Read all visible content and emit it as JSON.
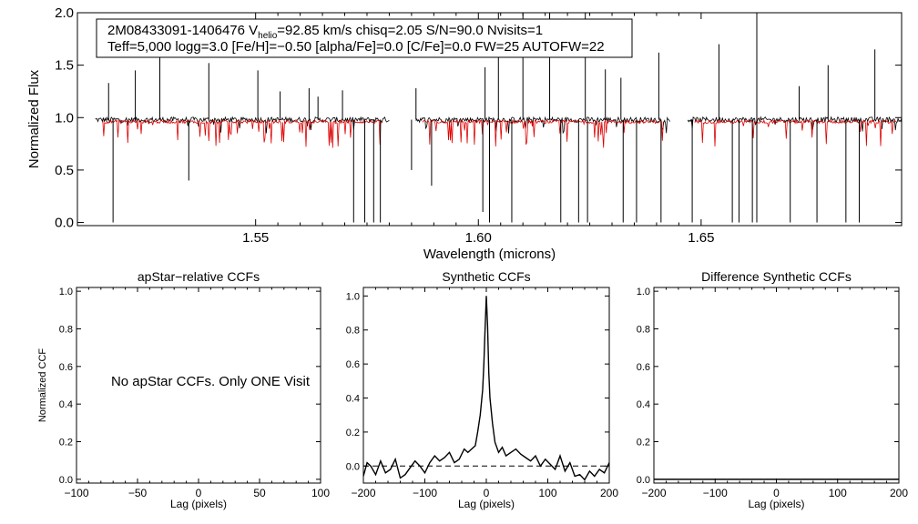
{
  "info_box": {
    "line1": {
      "star_id": "2M08433091-1406476",
      "v_label": "V",
      "v_sub": "helio",
      "v_value": "=92.85 km/s",
      "chisq": "chisq=2.05",
      "snr": "S/N=90.0",
      "nvisits": "Nvisits=1"
    },
    "line2": "Teff=5,000 logg=3.0 [Fe/H]=−0.50 [alpha/Fe]=0.0 [C/Fe]=0.0 FW=25 AUTOFW=22"
  },
  "chart_data": [
    {
      "name": "spectrum",
      "type": "line",
      "title": "",
      "xlabel": "Wavelength (microns)",
      "ylabel": "Normalized Flux",
      "xlim": [
        1.51,
        1.695
      ],
      "ylim": [
        -0.03,
        2.0
      ],
      "xticks": [
        1.55,
        1.6,
        1.65
      ],
      "xtick_labels": [
        "1.55",
        "1.60",
        "1.65"
      ],
      "yticks": [
        0.0,
        0.5,
        1.0,
        1.5,
        2.0
      ],
      "ytick_labels": [
        "0.0",
        "0.5",
        "1.0",
        "1.5",
        "2.0"
      ],
      "chip_ranges": [
        [
          1.514,
          1.58
        ],
        [
          1.586,
          1.643
        ],
        [
          1.647,
          1.6955
        ]
      ],
      "series": [
        {
          "name": "observed",
          "color": "#000000",
          "level": 0.98
        },
        {
          "name": "synthetic",
          "color": "#dd0000",
          "level": 0.96
        }
      ],
      "spikes_up": [
        [
          1.517,
          1.33
        ],
        [
          1.523,
          1.45
        ],
        [
          1.5285,
          1.62
        ],
        [
          1.5395,
          1.52
        ],
        [
          1.5505,
          1.45
        ],
        [
          1.5555,
          1.25
        ],
        [
          1.562,
          1.28
        ],
        [
          1.564,
          1.2
        ],
        [
          1.5695,
          1.26
        ],
        [
          1.586,
          1.28
        ],
        [
          1.6015,
          1.48
        ],
        [
          1.6045,
          2.0
        ],
        [
          1.61,
          2.0
        ],
        [
          1.616,
          2.0
        ],
        [
          1.624,
          2.0
        ],
        [
          1.6285,
          1.46
        ],
        [
          1.632,
          1.38
        ],
        [
          1.6405,
          1.62
        ],
        [
          1.654,
          1.7
        ],
        [
          1.6625,
          2.0
        ],
        [
          1.672,
          1.3
        ],
        [
          1.6785,
          1.5
        ],
        [
          1.689,
          1.65
        ]
      ],
      "spikes_down": [
        [
          1.518,
          0.0
        ],
        [
          1.535,
          0.4
        ],
        [
          1.572,
          0.0
        ],
        [
          1.5745,
          0.0
        ],
        [
          1.5765,
          0.0
        ],
        [
          1.578,
          0.0
        ],
        [
          1.585,
          0.5
        ],
        [
          1.5895,
          0.35
        ],
        [
          1.601,
          0.1
        ],
        [
          1.6025,
          0.0
        ],
        [
          1.6075,
          0.0
        ],
        [
          1.6185,
          0.0
        ],
        [
          1.6225,
          0.0
        ],
        [
          1.6245,
          0.0
        ],
        [
          1.6325,
          0.0
        ],
        [
          1.6355,
          0.0
        ],
        [
          1.641,
          0.0
        ],
        [
          1.648,
          0.0
        ],
        [
          1.657,
          0.0
        ],
        [
          1.6585,
          0.0
        ],
        [
          1.6615,
          0.0
        ],
        [
          1.6625,
          0.0
        ],
        [
          1.67,
          0.0
        ],
        [
          1.676,
          0.0
        ],
        [
          1.6825,
          0.0
        ],
        [
          1.6855,
          0.0
        ]
      ]
    },
    {
      "name": "apstar-ccf",
      "type": "line",
      "title": "apStar−relative CCFs",
      "xlabel": "Lag (pixels)",
      "ylabel": "Normalized CCF",
      "xlim": [
        -100,
        100
      ],
      "ylim": [
        -0.02,
        1.02
      ],
      "xticks": [
        -100,
        -50,
        0,
        50,
        100
      ],
      "xtick_labels": [
        "−100",
        "−50",
        "0",
        "50",
        "100"
      ],
      "yticks": [
        0.0,
        0.2,
        0.4,
        0.6,
        0.8,
        1.0
      ],
      "ytick_labels": [
        "0.0",
        "0.2",
        "0.4",
        "0.6",
        "0.8",
        "1.0"
      ],
      "message": "No apStar CCFs.  Only ONE Visit",
      "series": []
    },
    {
      "name": "synthetic-ccf",
      "type": "line",
      "title": "Synthetic CCFs",
      "xlabel": "Lag (pixels)",
      "ylabel": "",
      "xlim": [
        -200,
        200
      ],
      "ylim": [
        -0.1,
        1.05
      ],
      "xticks": [
        -200,
        -100,
        0,
        100,
        200
      ],
      "xtick_labels": [
        "−200",
        "−100",
        "0",
        "100",
        "200"
      ],
      "yticks": [
        0.0,
        0.2,
        0.4,
        0.6,
        0.8,
        1.0
      ],
      "ytick_labels": [
        "0.0",
        "0.2",
        "0.4",
        "0.6",
        "0.8",
        "1.0"
      ],
      "zero_line": 0.0,
      "series": [
        {
          "name": "ccf",
          "x": [
            -200,
            -194,
            -188,
            -180,
            -172,
            -164,
            -156,
            -148,
            -140,
            -132,
            -124,
            -116,
            -108,
            -100,
            -92,
            -84,
            -76,
            -68,
            -60,
            -52,
            -44,
            -36,
            -30,
            -24,
            -18,
            -14,
            -10,
            -6,
            -4,
            -2,
            0,
            2,
            4,
            6,
            10,
            14,
            20,
            26,
            32,
            40,
            48,
            56,
            64,
            72,
            80,
            88,
            96,
            104,
            112,
            120,
            128,
            136,
            144,
            152,
            160,
            168,
            176,
            184,
            192,
            200
          ],
          "y": [
            -0.06,
            0.02,
            0.0,
            -0.05,
            0.03,
            -0.04,
            -0.02,
            0.04,
            -0.07,
            -0.05,
            -0.01,
            0.03,
            0.0,
            -0.04,
            0.02,
            0.06,
            0.03,
            0.05,
            0.08,
            0.02,
            0.04,
            0.1,
            0.08,
            0.1,
            0.12,
            0.2,
            0.3,
            0.45,
            0.6,
            0.8,
            1.0,
            0.82,
            0.55,
            0.4,
            0.25,
            0.14,
            0.08,
            0.11,
            0.06,
            0.08,
            0.1,
            0.07,
            0.05,
            0.03,
            0.06,
            0.0,
            0.04,
            0.01,
            -0.02,
            0.06,
            -0.03,
            0.02,
            -0.06,
            -0.05,
            -0.08,
            -0.03,
            -0.06,
            -0.02,
            -0.04,
            0.02
          ]
        }
      ]
    },
    {
      "name": "difference-ccf",
      "type": "line",
      "title": "Difference Synthetic CCFs",
      "xlabel": "Lag (pixels)",
      "ylabel": "",
      "xlim": [
        -200,
        200
      ],
      "ylim": [
        -0.02,
        1.02
      ],
      "xticks": [
        -200,
        -100,
        0,
        100,
        200
      ],
      "xtick_labels": [
        "−200",
        "−100",
        "0",
        "100",
        "200"
      ],
      "yticks": [
        0.0,
        0.2,
        0.4,
        0.6,
        0.8,
        1.0
      ],
      "ytick_labels": [
        "0.0",
        "0.2",
        "0.4",
        "0.6",
        "0.8",
        "1.0"
      ],
      "series": [
        {
          "name": "difference",
          "x": [
            -200,
            200
          ],
          "y": [
            0.0,
            0.0
          ]
        }
      ]
    }
  ]
}
